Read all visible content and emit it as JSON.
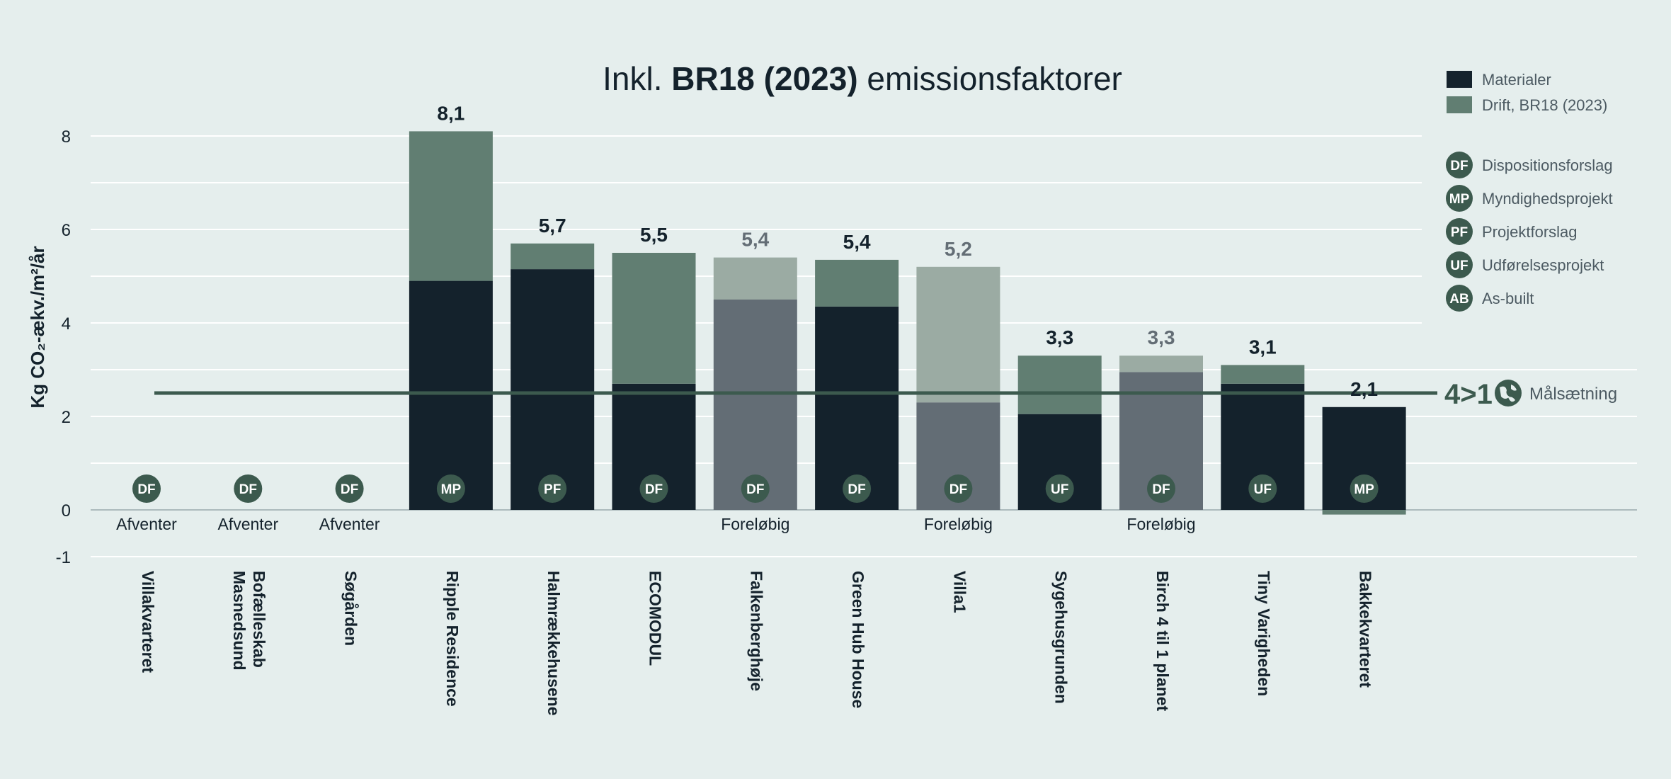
{
  "chart_data": {
    "type": "bar",
    "stacked": true,
    "title": {
      "prefix": "Inkl. ",
      "bold": "BR18 (2023)",
      "suffix": " emissionsfaktorer"
    },
    "ylabel": "Kg CO₂-ækv./m²/år",
    "ylim": [
      -1,
      8.5
    ],
    "yticks": [
      8,
      6,
      4,
      2,
      0,
      -1
    ],
    "grid": true,
    "categories": [
      "Villakvarteret",
      "Bofælleskab Masnedsund",
      "Søgården",
      "Ripple Residence",
      "Halmrækkehusene",
      "ECOMODUL",
      "Falkenberghøje",
      "Green Hub House",
      "Villa1",
      "Sygehusgrunden",
      "Birch 4 til 1 planet",
      "Tiny Varigheden",
      "Bakkekvarteret"
    ],
    "series": [
      {
        "name": "Materialer",
        "values": [
          null,
          null,
          null,
          4.9,
          5.15,
          2.7,
          4.5,
          4.35,
          2.3,
          2.05,
          2.95,
          2.7,
          2.2
        ]
      },
      {
        "name": "Drift, BR18 (2023)",
        "values": [
          null,
          null,
          null,
          3.2,
          0.55,
          2.8,
          0.9,
          1.0,
          2.9,
          1.25,
          0.35,
          0.4,
          -0.1
        ]
      }
    ],
    "totals": [
      "",
      "",
      "",
      "8,1",
      "5,7",
      "5,5",
      "5,4",
      "5,4",
      "5,2",
      "3,3",
      "3,3",
      "3,1",
      "2,1"
    ],
    "preliminary": [
      false,
      false,
      false,
      false,
      false,
      false,
      true,
      false,
      true,
      false,
      true,
      false,
      false
    ],
    "phase": [
      "DF",
      "DF",
      "DF",
      "MP",
      "PF",
      "DF",
      "DF",
      "DF",
      "DF",
      "UF",
      "DF",
      "UF",
      "MP"
    ],
    "status": [
      "Afventer",
      "Afventer",
      "Afventer",
      "",
      "",
      "",
      "Foreløbig",
      "",
      "Foreløbig",
      "",
      "Foreløbig",
      "",
      ""
    ],
    "target": {
      "value": 2.5,
      "label": "Målsætning",
      "logo_text": "4>1"
    },
    "legend_placement": "top-right",
    "legend": [
      {
        "name": "Materialer",
        "color": "#14222c"
      },
      {
        "name": "Drift, BR18 (2023)",
        "color": "#617e72"
      }
    ],
    "phase_legend": [
      {
        "code": "DF",
        "label": "Dispositionsforslag"
      },
      {
        "code": "MP",
        "label": "Myndighedsprojekt"
      },
      {
        "code": "PF",
        "label": "Projektforslag"
      },
      {
        "code": "UF",
        "label": "Udførelsesprojekt"
      },
      {
        "code": "AB",
        "label": "As-built"
      }
    ],
    "colors": {
      "materialer": "#14222c",
      "drift": "#617e72",
      "materialer_prelim": "#636d75",
      "drift_prelim": "#9bab a3",
      "badge": "#3c5a4e",
      "target_line": "#3c5a4e",
      "grid": "#ffffff",
      "axis_text": "#14222c",
      "muted_text": "#4c5a62"
    }
  }
}
